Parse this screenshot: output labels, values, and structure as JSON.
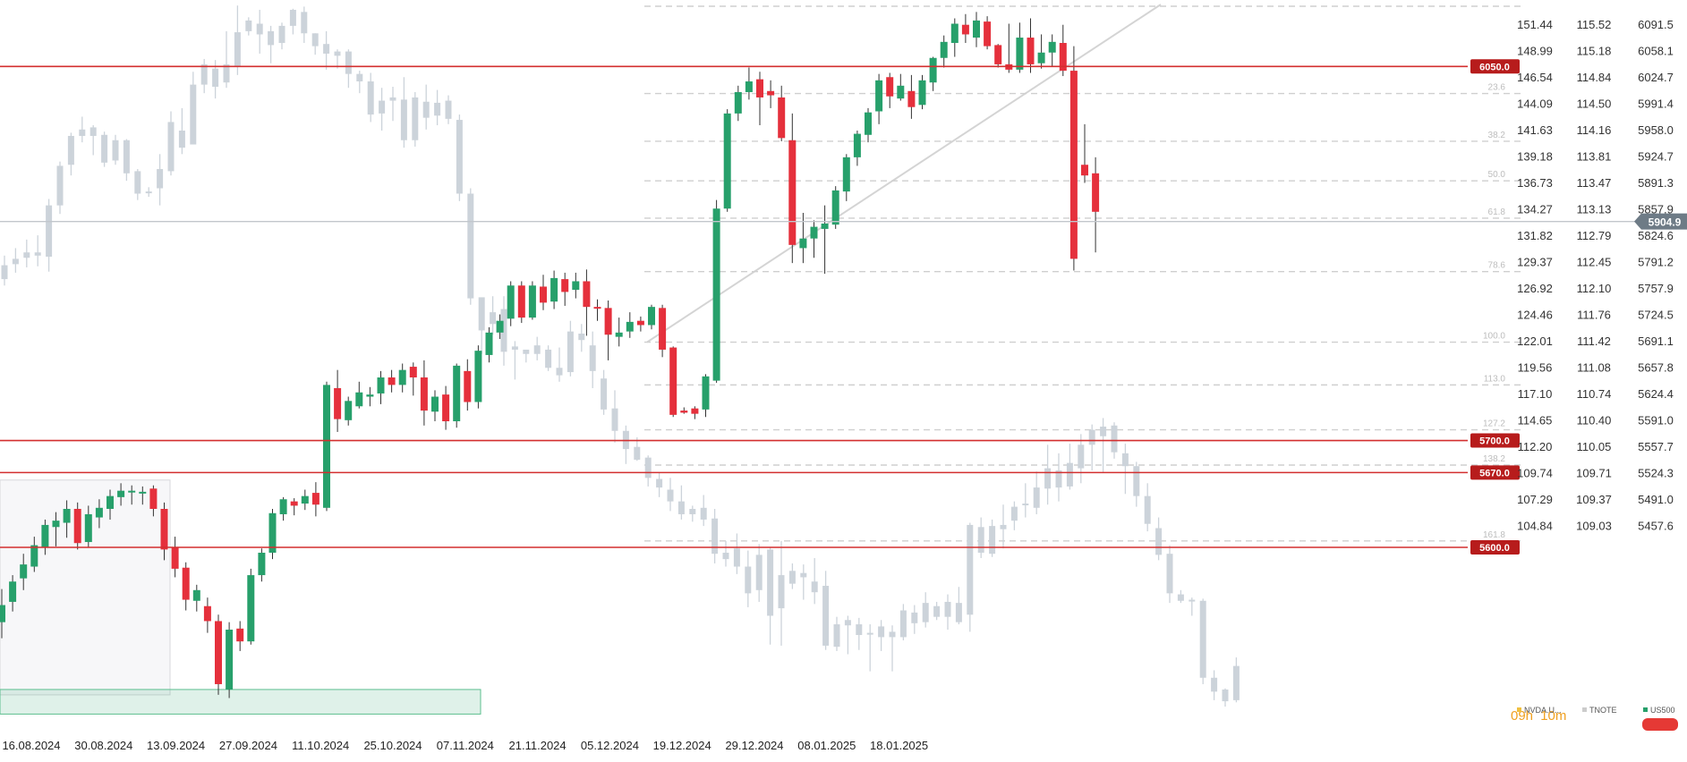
{
  "chart_data": {
    "type": "candlestick",
    "title": "",
    "colors": {
      "up": "#27a06b",
      "down": "#e5303c",
      "ghost": "#ccd3da",
      "level": "#d32f2f",
      "fib": "#cfcfcf"
    },
    "x_axis": {
      "labels": [
        "16.08.2024",
        "30.08.2024",
        "13.09.2024",
        "27.09.2024",
        "11.10.2024",
        "25.10.2024",
        "07.11.2024",
        "21.11.2024",
        "05.12.2024",
        "19.12.2024",
        "29.12.2024",
        "08.01.2025",
        "18.01.2025"
      ]
    },
    "y_axes": {
      "tnote": [
        "151.44",
        "148.99",
        "146.54",
        "144.09",
        "141.63",
        "139.18",
        "136.73",
        "134.27",
        "131.82",
        "129.37",
        "126.92",
        "124.46",
        "122.01",
        "119.56",
        "117.10",
        "114.65",
        "112.20",
        "109.74",
        "107.29",
        "104.84"
      ],
      "nvda": [
        "115.52",
        "115.18",
        "114.84",
        "114.50",
        "114.16",
        "113.81",
        "113.47",
        "113.13",
        "112.79",
        "112.45",
        "112.10",
        "111.76",
        "111.42",
        "111.08",
        "110.74",
        "110.40",
        "110.05",
        "109.71",
        "109.37",
        "109.03"
      ],
      "us500": [
        "6091.5",
        "6058.1",
        "6024.7",
        "5991.4",
        "5958.0",
        "5924.7",
        "5891.3",
        "5857.9",
        "5824.6",
        "5791.2",
        "5757.9",
        "5724.5",
        "5691.1",
        "5657.8",
        "5624.4",
        "5591.0",
        "5557.7",
        "5524.3",
        "5491.0",
        "5457.6"
      ]
    },
    "us500_range": [
      5441,
      6108
    ],
    "current_price": "5904.9",
    "levels": [
      {
        "label": "6050.0",
        "value": 6050
      },
      {
        "label": "5700.0",
        "value": 5700
      },
      {
        "label": "5670.0",
        "value": 5670
      },
      {
        "label": "5600.0",
        "value": 5600
      }
    ],
    "fib_levels": [
      {
        "label": "23.6",
        "value": 6024.7
      },
      {
        "label": "38.2",
        "value": 5980
      },
      {
        "label": "50.0",
        "value": 5943
      },
      {
        "label": "61.8",
        "value": 5908
      },
      {
        "label": "78.6",
        "value": 5858
      },
      {
        "label": "100.0",
        "value": 5792
      },
      {
        "label": "113.0",
        "value": 5752
      },
      {
        "label": "127.2",
        "value": 5710
      },
      {
        "label": "138.2",
        "value": 5677
      },
      {
        "label": "161.8",
        "value": 5606
      }
    ],
    "legend": [
      {
        "name": "NVDA.U...",
        "color": "#f0c040"
      },
      {
        "name": "TNOTE",
        "color": "#cccccc"
      },
      {
        "name": "US500",
        "color": "#27a06b"
      }
    ],
    "timer": {
      "hours": "09h",
      "minutes": "10m"
    },
    "us500_candles": [
      [
        5530,
        5546,
        5515,
        5561
      ],
      [
        5549,
        5568,
        5540,
        5574
      ],
      [
        5571,
        5584,
        5560,
        5594
      ],
      [
        5582,
        5602,
        5577,
        5610
      ],
      [
        5600,
        5621,
        5593,
        5626
      ],
      [
        5619,
        5625,
        5601,
        5633
      ],
      [
        5623,
        5636,
        5609,
        5644
      ],
      [
        5636,
        5604,
        5598,
        5642
      ],
      [
        5605,
        5631,
        5600,
        5639
      ],
      [
        5628,
        5637,
        5618,
        5645
      ],
      [
        5636,
        5648,
        5626,
        5654
      ],
      [
        5647,
        5653,
        5639,
        5660
      ],
      [
        5652,
        5653,
        5640,
        5658
      ],
      [
        5651,
        5652,
        5640,
        5657
      ],
      [
        5655,
        5636,
        5629,
        5658
      ],
      [
        5636,
        5598,
        5588,
        5642
      ],
      [
        5600,
        5580,
        5572,
        5610
      ],
      [
        5581,
        5551,
        5541,
        5586
      ],
      [
        5550,
        5560,
        5540,
        5565
      ],
      [
        5545,
        5531,
        5520,
        5553
      ],
      [
        5531,
        5472,
        5462,
        5537
      ],
      [
        5467,
        5523,
        5459,
        5530
      ],
      [
        5524,
        5512,
        5503,
        5531
      ],
      [
        5512,
        5574,
        5509,
        5580
      ],
      [
        5574,
        5595,
        5568,
        5599
      ],
      [
        5595,
        5632,
        5589,
        5636
      ],
      [
        5631,
        5645,
        5625,
        5647
      ],
      [
        5643,
        5639,
        5630,
        5646
      ],
      [
        5641,
        5648,
        5635,
        5654
      ],
      [
        5651,
        5640,
        5629,
        5661
      ],
      [
        5637,
        5752,
        5634,
        5755
      ],
      [
        5749,
        5720,
        5708,
        5766
      ],
      [
        5719,
        5737,
        5714,
        5741
      ],
      [
        5732,
        5745,
        5730,
        5755
      ],
      [
        5741,
        5743,
        5732,
        5750
      ],
      [
        5744,
        5759,
        5734,
        5765
      ],
      [
        5759,
        5752,
        5745,
        5766
      ],
      [
        5752,
        5766,
        5745,
        5772
      ],
      [
        5769,
        5759,
        5742,
        5773
      ],
      [
        5759,
        5728,
        5714,
        5775
      ],
      [
        5727,
        5741,
        5718,
        5747
      ],
      [
        5743,
        5718,
        5710,
        5751
      ],
      [
        5718,
        5770,
        5712,
        5772
      ],
      [
        5765,
        5736,
        5728,
        5776
      ],
      [
        5736,
        5784,
        5730,
        5789
      ],
      [
        5780,
        5801,
        5773,
        5806
      ],
      [
        5801,
        5812,
        5795,
        5818
      ],
      [
        5814,
        5845,
        5807,
        5849
      ],
      [
        5845,
        5815,
        5810,
        5849
      ],
      [
        5815,
        5845,
        5813,
        5849
      ],
      [
        5844,
        5829,
        5822,
        5855
      ],
      [
        5830,
        5852,
        5823,
        5859
      ],
      [
        5851,
        5839,
        5826,
        5857
      ],
      [
        5841,
        5849,
        5833,
        5857
      ],
      [
        5849,
        5825,
        5798,
        5860
      ],
      [
        5825,
        5824,
        5812,
        5832
      ],
      [
        5824,
        5799,
        5775,
        5831
      ],
      [
        5797,
        5801,
        5788,
        5815
      ],
      [
        5802,
        5811,
        5796,
        5820
      ],
      [
        5812,
        5808,
        5802,
        5816
      ],
      [
        5808,
        5825,
        5804,
        5827
      ],
      [
        5824,
        5785,
        5778,
        5827
      ],
      [
        5787,
        5724,
        5722,
        5788
      ],
      [
        5728,
        5726,
        5725,
        5731
      ],
      [
        5730,
        5725,
        5720,
        5732
      ],
      [
        5729,
        5760,
        5722,
        5762
      ],
      [
        5756,
        5917,
        5754,
        5925
      ],
      [
        5917,
        6006,
        5914,
        6010
      ],
      [
        6006,
        6026,
        5999,
        6032
      ],
      [
        6026,
        6036,
        6019,
        6049
      ],
      [
        6038,
        6021,
        5995,
        6045
      ],
      [
        6027,
        6023,
        6011,
        6037
      ],
      [
        6021,
        5983,
        5980,
        6032
      ],
      [
        5981,
        5883,
        5866,
        6006
      ],
      [
        5880,
        5889,
        5866,
        5913
      ],
      [
        5889,
        5900,
        5871,
        5906
      ],
      [
        5898,
        5903,
        5856,
        5920
      ],
      [
        5902,
        5934,
        5898,
        5938
      ],
      [
        5933,
        5965,
        5924,
        5968
      ],
      [
        5965,
        5987,
        5957,
        5990
      ],
      [
        5986,
        6007,
        5979,
        6011
      ],
      [
        6008,
        6037,
        5996,
        6043
      ],
      [
        6040,
        6022,
        6011,
        6044
      ],
      [
        6020,
        6032,
        6018,
        6043
      ],
      [
        6027,
        6012,
        6001,
        6042
      ],
      [
        6014,
        6037,
        6010,
        6042
      ],
      [
        6035,
        6058,
        6027,
        6059
      ],
      [
        6058,
        6073,
        6049,
        6079
      ],
      [
        6072,
        6090,
        6059,
        6095
      ],
      [
        6089,
        6080,
        6072,
        6099
      ],
      [
        6077,
        6093,
        6068,
        6101
      ],
      [
        6092,
        6069,
        6066,
        6097
      ],
      [
        6070,
        6052,
        6049,
        6071
      ],
      [
        6052,
        6047,
        6044,
        6090
      ],
      [
        6047,
        6077,
        6044,
        6091
      ],
      [
        6077,
        6052,
        6044,
        6095
      ],
      [
        6053,
        6063,
        6048,
        6080
      ],
      [
        6063,
        6073,
        6050,
        6080
      ],
      [
        6072,
        6046,
        6041,
        6089
      ],
      [
        6046,
        5870,
        5859,
        6069
      ],
      [
        5958,
        5948,
        5941,
        5996
      ],
      [
        5950,
        5914,
        5876,
        5965
      ]
    ],
    "ghost_candles": [
      [
        5851,
        5864,
        5845,
        5873
      ],
      [
        5865,
        5870,
        5857,
        5880
      ],
      [
        5871,
        5876,
        5862,
        5888
      ],
      [
        5876,
        5873,
        5863,
        5892
      ],
      [
        5872,
        5920,
        5858,
        5926
      ],
      [
        5920,
        5957,
        5912,
        5961
      ],
      [
        5958,
        5985,
        5948,
        5988
      ],
      [
        5985,
        5991,
        5979,
        6003
      ],
      [
        5993,
        5985,
        5967,
        5995
      ],
      [
        5986,
        5960,
        5956,
        5989
      ],
      [
        5962,
        5981,
        5958,
        5986
      ],
      [
        5981,
        5950,
        5943,
        5982
      ],
      [
        5952,
        5931,
        5925,
        5954
      ],
      [
        5933,
        5933,
        5928,
        5937
      ],
      [
        5936,
        5954,
        5920,
        5968
      ],
      [
        5952,
        5998,
        5948,
        6008
      ],
      [
        5990,
        5974,
        5968,
        6011
      ],
      [
        5977,
        6033,
        5979,
        6045
      ],
      [
        6033,
        6052,
        6025,
        6057
      ],
      [
        6048,
        6031,
        6020,
        6056
      ],
      [
        6035,
        6052,
        6030,
        6083
      ],
      [
        6050,
        6082,
        6042,
        6107
      ],
      [
        6083,
        6093,
        6079,
        6096
      ],
      [
        6090,
        6080,
        6062,
        6103
      ],
      [
        6083,
        6070,
        6053,
        6088
      ],
      [
        6072,
        6088,
        6066,
        6091
      ],
      [
        6088,
        6103,
        6080,
        6104
      ],
      [
        6101,
        6081,
        6072,
        6106
      ],
      [
        6081,
        6069,
        6061,
        6081
      ],
      [
        6071,
        6062,
        6047,
        6083
      ],
      [
        6060,
        6064,
        6048,
        6066
      ],
      [
        6064,
        6043,
        6030,
        6066
      ],
      [
        6043,
        6036,
        6025,
        6046
      ],
      [
        6036,
        6005,
        5998,
        6044
      ],
      [
        6006,
        6018,
        5990,
        6030
      ],
      [
        6018,
        6021,
        5999,
        6031
      ],
      [
        6019,
        5981,
        5974,
        6040
      ],
      [
        5981,
        6021,
        5975,
        6026
      ],
      [
        6017,
        6002,
        5991,
        6033
      ],
      [
        6004,
        6016,
        5995,
        6028
      ],
      [
        6018,
        6001,
        5996,
        6023
      ],
      [
        6000,
        5931,
        5924,
        6005
      ],
      [
        5931,
        5833,
        5827,
        5936
      ],
      [
        5834,
        5803,
        5781,
        5822
      ],
      [
        5809,
        5820,
        5799,
        5835
      ],
      [
        5823,
        5783,
        5770,
        5835
      ],
      [
        5785,
        5788,
        5757,
        5793
      ],
      [
        5785,
        5781,
        5773,
        5782
      ],
      [
        5781,
        5789,
        5775,
        5797
      ],
      [
        5785,
        5768,
        5765,
        5789
      ],
      [
        5768,
        5761,
        5755,
        5787
      ],
      [
        5764,
        5802,
        5760,
        5812
      ],
      [
        5800,
        5794,
        5783,
        5809
      ],
      [
        5789,
        5765,
        5749,
        5802
      ],
      [
        5758,
        5729,
        5724,
        5766
      ],
      [
        5730,
        5709,
        5698,
        5747
      ],
      [
        5709,
        5692,
        5678,
        5714
      ],
      [
        5694,
        5682,
        5681,
        5703
      ],
      [
        5684,
        5665,
        5657,
        5686
      ],
      [
        5664,
        5656,
        5647,
        5670
      ],
      [
        5654,
        5643,
        5634,
        5665
      ],
      [
        5643,
        5631,
        5626,
        5658
      ],
      [
        5631,
        5636,
        5624,
        5639
      ],
      [
        5637,
        5626,
        5620,
        5649
      ],
      [
        5627,
        5594,
        5585,
        5636
      ],
      [
        5589,
        5595,
        5582,
        5606
      ],
      [
        5599,
        5582,
        5575,
        5613
      ],
      [
        5582,
        5557,
        5544,
        5597
      ],
      [
        5560,
        5593,
        5549,
        5603
      ],
      [
        5598,
        5536,
        5509,
        5600
      ],
      [
        5543,
        5574,
        5508,
        5606
      ],
      [
        5566,
        5578,
        5561,
        5585
      ],
      [
        5576,
        5572,
        5551,
        5584
      ],
      [
        5568,
        5558,
        5547,
        5590
      ],
      [
        5564,
        5508,
        5504,
        5578
      ],
      [
        5507,
        5528,
        5503,
        5535
      ],
      [
        5532,
        5527,
        5500,
        5536
      ],
      [
        5528,
        5518,
        5504,
        5534
      ],
      [
        5520,
        5519,
        5484,
        5528
      ],
      [
        5526,
        5516,
        5503,
        5532
      ],
      [
        5521,
        5516,
        5484,
        5527
      ],
      [
        5516,
        5541,
        5513,
        5547
      ],
      [
        5539,
        5529,
        5519,
        5546
      ],
      [
        5530,
        5548,
        5525,
        5558
      ],
      [
        5545,
        5535,
        5532,
        5549
      ],
      [
        5535,
        5549,
        5523,
        5556
      ],
      [
        5548,
        5530,
        5528,
        5563
      ],
      [
        5537,
        5621,
        5521,
        5623
      ],
      [
        5619,
        5595,
        5590,
        5628
      ],
      [
        5594,
        5620,
        5591,
        5626
      ],
      [
        5621,
        5617,
        5599,
        5640
      ],
      [
        5625,
        5638,
        5616,
        5643
      ],
      [
        5641,
        5640,
        5628,
        5660
      ],
      [
        5637,
        5656,
        5631,
        5671
      ],
      [
        5655,
        5674,
        5640,
        5696
      ],
      [
        5672,
        5656,
        5643,
        5688
      ],
      [
        5657,
        5679,
        5654,
        5697
      ],
      [
        5674,
        5696,
        5660,
        5706
      ],
      [
        5696,
        5710,
        5672,
        5715
      ],
      [
        5704,
        5713,
        5670,
        5721
      ],
      [
        5714,
        5689,
        5683,
        5717
      ],
      [
        5688,
        5676,
        5650,
        5697
      ],
      [
        5676,
        5648,
        5638,
        5680
      ],
      [
        5648,
        5622,
        5615,
        5660
      ],
      [
        5618,
        5593,
        5588,
        5628
      ],
      [
        5594,
        5557,
        5548,
        5602
      ],
      [
        5556,
        5550,
        5548,
        5560
      ],
      [
        5551,
        5550,
        5536,
        5553
      ],
      [
        5550,
        5478,
        5472,
        5552
      ],
      [
        5478,
        5465,
        5457,
        5485
      ],
      [
        5467,
        5456,
        5451,
        5468
      ],
      [
        5457,
        5489,
        5455,
        5497
      ]
    ]
  }
}
